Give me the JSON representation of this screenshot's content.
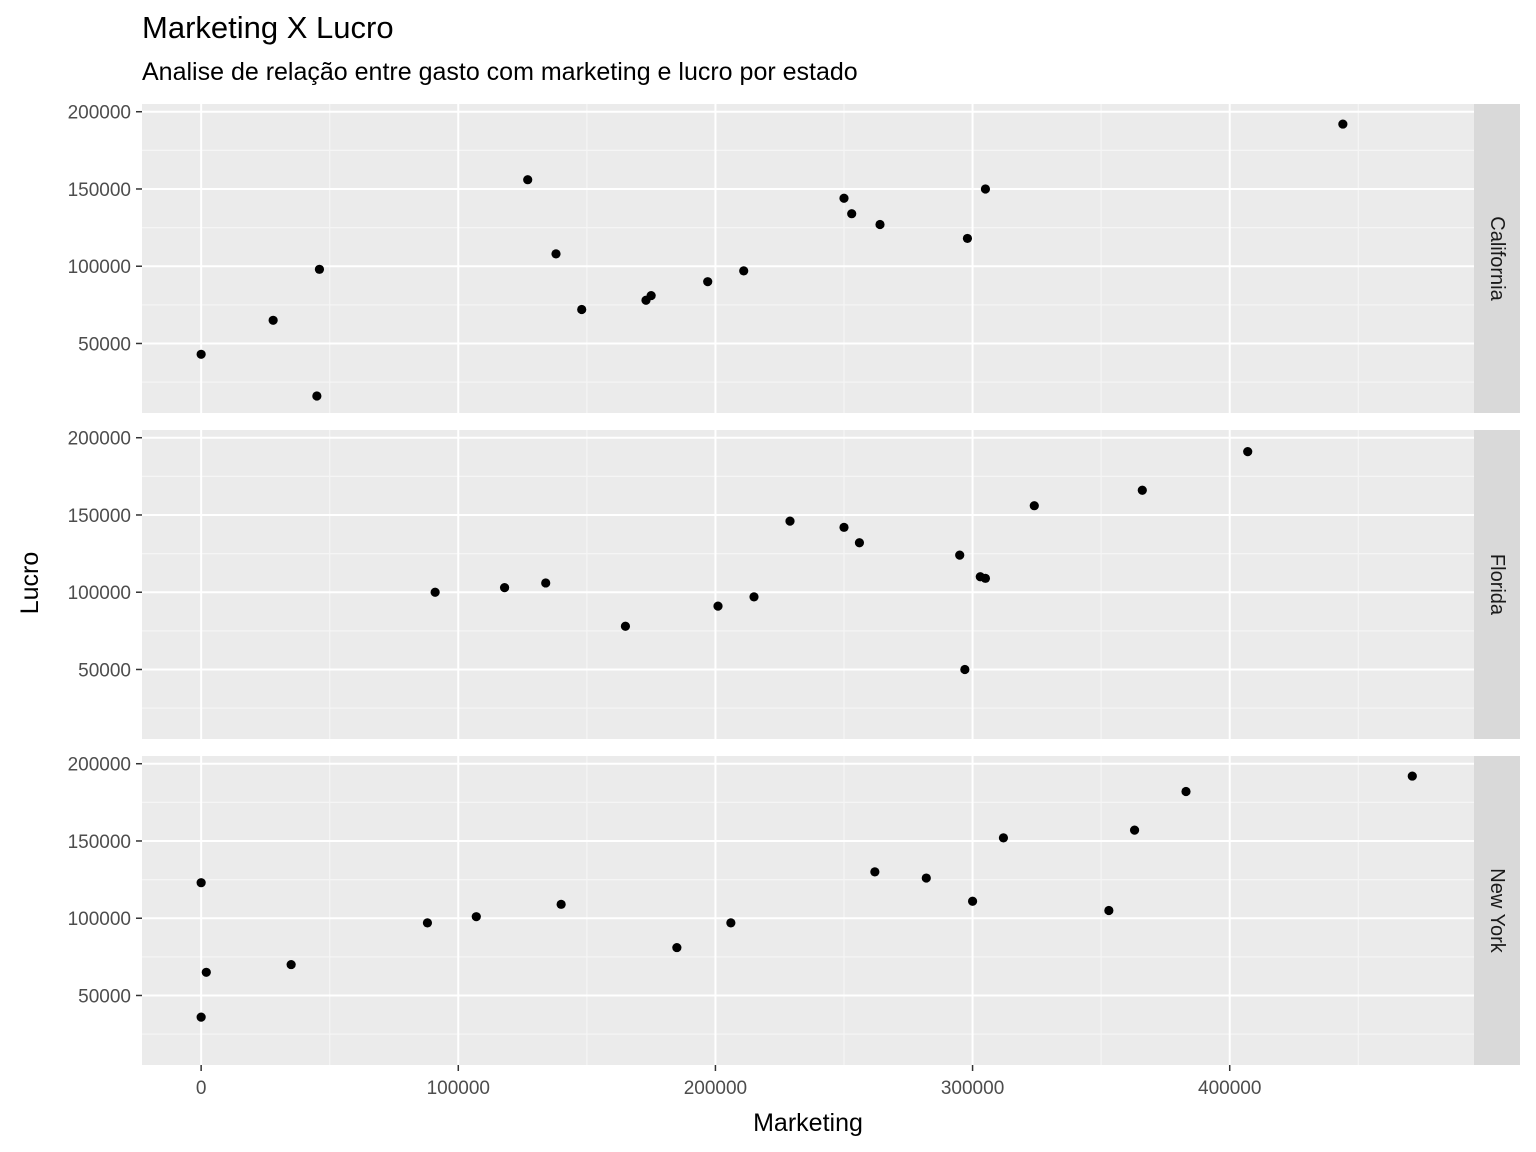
{
  "chart_data": {
    "type": "scatter",
    "title": "Marketing X Lucro",
    "subtitle": "Analise de relação entre gasto com marketing e lucro por estado",
    "xlabel": "Marketing",
    "ylabel": "Lucro",
    "xlim": [
      -23000,
      495000
    ],
    "ylim": [
      5000,
      205000
    ],
    "x_ticks": [
      0,
      100000,
      200000,
      300000,
      400000
    ],
    "y_ticks": [
      50000,
      100000,
      150000,
      200000
    ],
    "grid": true,
    "facet_by": "state",
    "panels": [
      {
        "name": "California",
        "points": [
          {
            "x": 0,
            "y": 43000
          },
          {
            "x": 28000,
            "y": 65000
          },
          {
            "x": 45000,
            "y": 16000
          },
          {
            "x": 46000,
            "y": 98000
          },
          {
            "x": 127000,
            "y": 156000
          },
          {
            "x": 138000,
            "y": 108000
          },
          {
            "x": 148000,
            "y": 72000
          },
          {
            "x": 173000,
            "y": 78000
          },
          {
            "x": 175000,
            "y": 81000
          },
          {
            "x": 197000,
            "y": 90000
          },
          {
            "x": 211000,
            "y": 97000
          },
          {
            "x": 250000,
            "y": 144000
          },
          {
            "x": 253000,
            "y": 134000
          },
          {
            "x": 264000,
            "y": 127000
          },
          {
            "x": 298000,
            "y": 118000
          },
          {
            "x": 305000,
            "y": 150000
          },
          {
            "x": 444000,
            "y": 192000
          }
        ]
      },
      {
        "name": "Florida",
        "points": [
          {
            "x": 91000,
            "y": 100000
          },
          {
            "x": 118000,
            "y": 103000
          },
          {
            "x": 134000,
            "y": 106000
          },
          {
            "x": 165000,
            "y": 78000
          },
          {
            "x": 201000,
            "y": 91000
          },
          {
            "x": 215000,
            "y": 97000
          },
          {
            "x": 229000,
            "y": 146000
          },
          {
            "x": 250000,
            "y": 142000
          },
          {
            "x": 256000,
            "y": 132000
          },
          {
            "x": 295000,
            "y": 124000
          },
          {
            "x": 297000,
            "y": 50000
          },
          {
            "x": 303000,
            "y": 110000
          },
          {
            "x": 305000,
            "y": 109000
          },
          {
            "x": 324000,
            "y": 156000
          },
          {
            "x": 366000,
            "y": 166000
          },
          {
            "x": 407000,
            "y": 191000
          }
        ]
      },
      {
        "name": "New York",
        "points": [
          {
            "x": 0,
            "y": 123000
          },
          {
            "x": 0,
            "y": 36000
          },
          {
            "x": 2000,
            "y": 65000
          },
          {
            "x": 35000,
            "y": 70000
          },
          {
            "x": 88000,
            "y": 97000
          },
          {
            "x": 107000,
            "y": 101000
          },
          {
            "x": 140000,
            "y": 109000
          },
          {
            "x": 185000,
            "y": 81000
          },
          {
            "x": 206000,
            "y": 97000
          },
          {
            "x": 262000,
            "y": 130000
          },
          {
            "x": 282000,
            "y": 126000
          },
          {
            "x": 300000,
            "y": 111000
          },
          {
            "x": 312000,
            "y": 152000
          },
          {
            "x": 353000,
            "y": 105000
          },
          {
            "x": 363000,
            "y": 157000
          },
          {
            "x": 383000,
            "y": 182000
          },
          {
            "x": 471000,
            "y": 192000
          }
        ]
      }
    ]
  }
}
